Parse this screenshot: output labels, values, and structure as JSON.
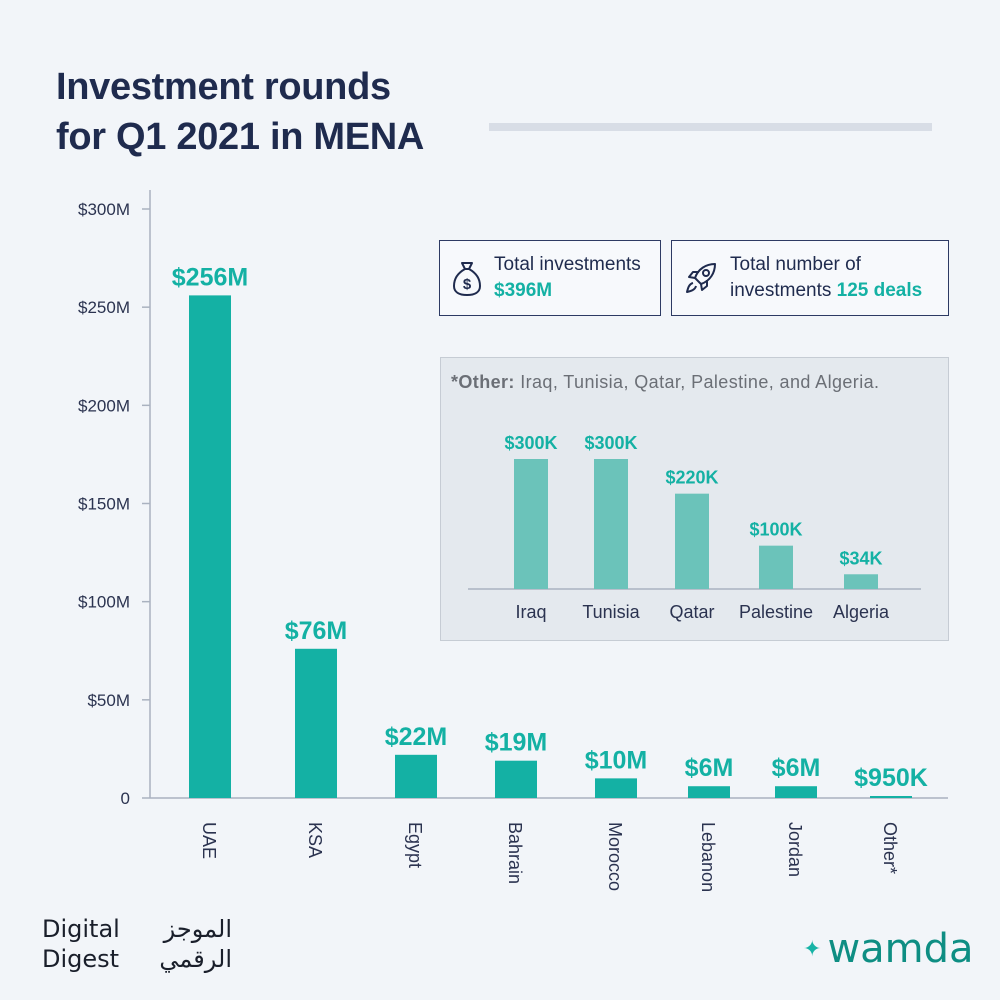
{
  "title": {
    "line1": "Investment rounds",
    "line2": "for Q1 2021 in MENA"
  },
  "colors": {
    "bar": "#14b1a4",
    "inset_bar": "#6bc3ba",
    "label": "#14b1a4",
    "axis_text": "#2b3350",
    "title": "#1f2b4e"
  },
  "kpis": {
    "total": {
      "icon": "money-bag-icon",
      "label": "Total investments",
      "value": "$396M"
    },
    "deals": {
      "icon": "rocket-icon",
      "label_line1": "Total number of",
      "label_line2": "investments",
      "value": "125 deals"
    }
  },
  "inset": {
    "note_bold": "*Other:",
    "note_rest": " Iraq, Tunisia, Qatar, Palestine, and Algeria."
  },
  "brand": {
    "digest_en_1": "Digital",
    "digest_en_2": "Digest",
    "digest_ar_1": "الموجز",
    "digest_ar_2": "الرقمي",
    "wamda": "wamda"
  },
  "chart_data": [
    {
      "type": "bar",
      "categories": [
        "UAE",
        "KSA",
        "Egypt",
        "Bahrain",
        "Morocco",
        "Lebanon",
        "Jordan",
        "Other*"
      ],
      "values": [
        256,
        76,
        22,
        19,
        10,
        6,
        6,
        0.95
      ],
      "value_labels": [
        "$256M",
        "$76M",
        "$22M",
        "$19M",
        "$10M",
        "$6M",
        "$6M",
        "$950K"
      ],
      "units": "M USD",
      "yticks": [
        0,
        50,
        100,
        150,
        200,
        250,
        300
      ],
      "ytick_labels": [
        "0",
        "$50M",
        "$100M",
        "$150M",
        "$200M",
        "$250M",
        "$300M"
      ],
      "ylim": [
        0,
        300
      ],
      "title": "Investment rounds for Q1 2021 in MENA",
      "xlabel": "",
      "ylabel": "",
      "grid": false,
      "legend": "none"
    },
    {
      "type": "bar",
      "categories": [
        "Iraq",
        "Tunisia",
        "Qatar",
        "Palestine",
        "Algeria"
      ],
      "values": [
        300,
        300,
        220,
        100,
        34
      ],
      "value_labels": [
        "$300K",
        "$300K",
        "$220K",
        "$100K",
        "$34K"
      ],
      "units": "K USD",
      "title": "",
      "xlabel": "",
      "ylabel": "",
      "grid": false,
      "legend": "none"
    }
  ]
}
